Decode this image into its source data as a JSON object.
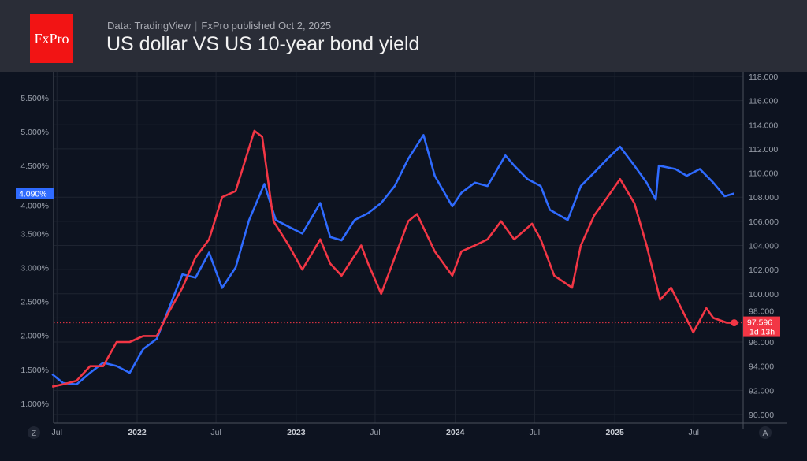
{
  "header": {
    "logo": "FxPro",
    "source": "Data: TradingView",
    "published": "FxPro published Oct 2,  2025",
    "title": "US dollar VS US 10-year bond yield"
  },
  "controls": {
    "left_button": "Z",
    "right_button": "A"
  },
  "chart_data": {
    "type": "line",
    "title": "US dollar VS US 10-year bond yield",
    "grid": true,
    "colors": {
      "yield": "#2f6bff",
      "dollar": "#f23645"
    },
    "x_ticks": [
      {
        "date": "2021-07-01",
        "label": "Jul",
        "bold": false
      },
      {
        "date": "2022-01-01",
        "label": "2022",
        "bold": true
      },
      {
        "date": "2022-07-01",
        "label": "Jul",
        "bold": false
      },
      {
        "date": "2023-01-01",
        "label": "2023",
        "bold": true
      },
      {
        "date": "2023-07-01",
        "label": "Jul",
        "bold": false
      },
      {
        "date": "2024-01-01",
        "label": "2024",
        "bold": true
      },
      {
        "date": "2024-07-01",
        "label": "Jul",
        "bold": false
      },
      {
        "date": "2025-01-01",
        "label": "2025",
        "bold": true
      },
      {
        "date": "2025-07-01",
        "label": "Jul",
        "bold": false
      }
    ],
    "left_axis": {
      "ylim": [
        0.88,
        5.75
      ],
      "ticks": [
        "1.000%",
        "1.500%",
        "2.000%",
        "2.500%",
        "3.000%",
        "3.500%",
        "4.000%",
        "4.500%",
        "5.000%",
        "5.500%"
      ],
      "tick_values": [
        1,
        1.5,
        2,
        2.5,
        3,
        3.5,
        4,
        4.5,
        5,
        5.5
      ]
    },
    "right_axis": {
      "ylim": [
        89.2,
        118.3
      ],
      "ticks": [
        "90.000",
        "92.000",
        "94.000",
        "96.000",
        "98.000",
        "100.000",
        "102.000",
        "104.000",
        "106.000",
        "108.000",
        "110.000",
        "112.000",
        "114.000",
        "116.000",
        "118.000"
      ],
      "tick_values": [
        90,
        92,
        94,
        96,
        98,
        100,
        102,
        104,
        106,
        108,
        110,
        112,
        114,
        116,
        118
      ]
    },
    "last_labels": {
      "yield": "4.090%",
      "dollar": "97.596",
      "dollar_countdown": "1d 13h"
    },
    "series": [
      {
        "key": "yield",
        "axis": "left",
        "color": "#2f6bff",
        "x": [
          "2021-06-20",
          "2021-07-15",
          "2021-08-15",
          "2021-09-15",
          "2021-10-15",
          "2021-11-15",
          "2021-12-15",
          "2022-01-15",
          "2022-02-15",
          "2022-03-15",
          "2022-04-15",
          "2022-05-15",
          "2022-06-15",
          "2022-07-15",
          "2022-08-15",
          "2022-09-15",
          "2022-10-20",
          "2022-11-15",
          "2022-12-15",
          "2023-01-15",
          "2023-02-25",
          "2023-03-20",
          "2023-04-15",
          "2023-05-15",
          "2023-06-15",
          "2023-07-15",
          "2023-08-15",
          "2023-09-15",
          "2023-10-20",
          "2023-11-15",
          "2023-12-25",
          "2024-01-15",
          "2024-02-15",
          "2024-03-15",
          "2024-04-25",
          "2024-05-15",
          "2024-06-15",
          "2024-07-15",
          "2024-08-05",
          "2024-09-15",
          "2024-10-15",
          "2024-11-15",
          "2024-12-15",
          "2025-01-13",
          "2025-02-15",
          "2025-03-15",
          "2025-04-05",
          "2025-04-12",
          "2025-05-20",
          "2025-06-15",
          "2025-07-15",
          "2025-08-15",
          "2025-09-10",
          "2025-10-02"
        ],
        "values": [
          1.43,
          1.3,
          1.28,
          1.45,
          1.6,
          1.55,
          1.45,
          1.8,
          1.95,
          2.4,
          2.9,
          2.85,
          3.22,
          2.7,
          3.0,
          3.7,
          4.23,
          3.7,
          3.6,
          3.5,
          3.95,
          3.45,
          3.4,
          3.7,
          3.8,
          3.95,
          4.2,
          4.6,
          4.95,
          4.35,
          3.9,
          4.1,
          4.25,
          4.2,
          4.65,
          4.5,
          4.3,
          4.2,
          3.85,
          3.7,
          4.2,
          4.4,
          4.6,
          4.78,
          4.5,
          4.25,
          4.0,
          4.5,
          4.45,
          4.35,
          4.45,
          4.25,
          4.05,
          4.09
        ]
      },
      {
        "key": "dollar",
        "axis": "right",
        "color": "#f23645",
        "x": [
          "2021-06-20",
          "2021-07-15",
          "2021-08-15",
          "2021-09-15",
          "2021-10-15",
          "2021-11-15",
          "2021-12-15",
          "2022-01-15",
          "2022-02-15",
          "2022-03-15",
          "2022-04-15",
          "2022-05-15",
          "2022-06-15",
          "2022-07-15",
          "2022-08-15",
          "2022-09-27",
          "2022-10-15",
          "2022-11-10",
          "2022-12-15",
          "2023-01-15",
          "2023-02-25",
          "2023-03-20",
          "2023-04-15",
          "2023-05-30",
          "2023-06-15",
          "2023-07-15",
          "2023-08-15",
          "2023-09-15",
          "2023-10-05",
          "2023-11-15",
          "2023-12-25",
          "2024-01-15",
          "2024-02-15",
          "2024-03-15",
          "2024-04-15",
          "2024-05-15",
          "2024-06-25",
          "2024-07-15",
          "2024-08-15",
          "2024-09-25",
          "2024-10-15",
          "2024-11-15",
          "2024-12-15",
          "2025-01-13",
          "2025-02-15",
          "2025-03-15",
          "2025-04-15",
          "2025-05-10",
          "2025-06-30",
          "2025-07-30",
          "2025-08-15",
          "2025-09-15",
          "2025-10-02"
        ],
        "values": [
          92.3,
          92.5,
          92.8,
          94,
          94,
          96,
          96,
          96.5,
          96.5,
          98.5,
          100.5,
          103,
          104.5,
          108,
          108.5,
          113.5,
          113,
          106,
          104,
          102,
          104.5,
          102.5,
          101.5,
          104,
          102.5,
          100,
          103,
          106,
          106.6,
          103.5,
          101.5,
          103.5,
          104,
          104.5,
          106,
          104.5,
          105.8,
          104.5,
          101.5,
          100.5,
          104,
          106.5,
          108,
          109.5,
          107.5,
          104,
          99.5,
          100.5,
          96.8,
          98.8,
          98,
          97.6,
          97.596
        ]
      }
    ]
  }
}
